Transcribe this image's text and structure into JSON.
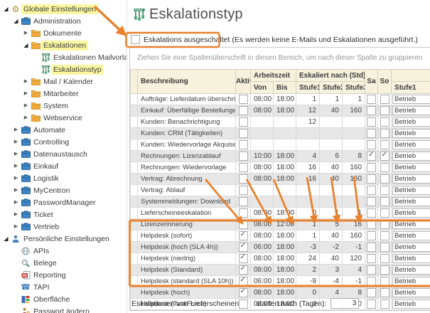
{
  "sidebar": {
    "items": [
      {
        "label": "Globale Einstellungen",
        "level": 0,
        "icon": "gear-icon",
        "expander": "expanded",
        "highlight": true
      },
      {
        "label": "Administration",
        "level": 1,
        "icon": "briefcase-icon",
        "expander": "expanded",
        "highlight": false
      },
      {
        "label": "Dokumente",
        "level": 2,
        "icon": "folder-icon",
        "expander": "collapsed",
        "highlight": false
      },
      {
        "label": "Eskalationen",
        "level": 2,
        "icon": "folder-icon",
        "expander": "expanded",
        "highlight": true
      },
      {
        "label": "Eskalationen Mailvorlage",
        "level": 3,
        "icon": "escalation-icon",
        "expander": "none",
        "highlight": false
      },
      {
        "label": "Eskalationstyp",
        "level": 3,
        "icon": "escalation-icon",
        "expander": "none",
        "highlight": true
      },
      {
        "label": "Mail / Kalender",
        "level": 2,
        "icon": "folder-icon",
        "expander": "collapsed",
        "highlight": false
      },
      {
        "label": "Mitarbeiter",
        "level": 2,
        "icon": "folder-icon",
        "expander": "collapsed",
        "highlight": false
      },
      {
        "label": "System",
        "level": 2,
        "icon": "folder-icon",
        "expander": "collapsed",
        "highlight": false
      },
      {
        "label": "Webservice",
        "level": 2,
        "icon": "folder-icon",
        "expander": "collapsed",
        "highlight": false
      },
      {
        "label": "Automate",
        "level": 1,
        "icon": "briefcase-icon",
        "expander": "collapsed",
        "highlight": false
      },
      {
        "label": "Controlling",
        "level": 1,
        "icon": "briefcase-icon",
        "expander": "collapsed",
        "highlight": false
      },
      {
        "label": "Datenaustausch",
        "level": 1,
        "icon": "briefcase-icon",
        "expander": "collapsed",
        "highlight": false
      },
      {
        "label": "Einkauf",
        "level": 1,
        "icon": "briefcase-icon",
        "expander": "collapsed",
        "highlight": false
      },
      {
        "label": "Logistik",
        "level": 1,
        "icon": "briefcase-icon",
        "expander": "collapsed",
        "highlight": false
      },
      {
        "label": "MyCentron",
        "level": 1,
        "icon": "briefcase-icon",
        "expander": "collapsed",
        "highlight": false
      },
      {
        "label": "PasswordManager",
        "level": 1,
        "icon": "briefcase-icon",
        "expander": "collapsed",
        "highlight": false
      },
      {
        "label": "Ticket",
        "level": 1,
        "icon": "briefcase-icon",
        "expander": "collapsed",
        "highlight": false
      },
      {
        "label": "Vertrieb",
        "level": 1,
        "icon": "briefcase-icon",
        "expander": "collapsed",
        "highlight": false
      },
      {
        "label": "Persönliche Einstellungen",
        "level": 0,
        "icon": "person-icon",
        "expander": "expanded",
        "highlight": false
      },
      {
        "label": "APIs",
        "level": 1,
        "icon": "globe-icon",
        "expander": "none",
        "highlight": false
      },
      {
        "label": "Belege",
        "level": 1,
        "icon": "search-icon",
        "expander": "none",
        "highlight": false
      },
      {
        "label": "Reporting",
        "level": 1,
        "icon": "report-icon",
        "expander": "none",
        "highlight": false
      },
      {
        "label": "TAPI",
        "level": 1,
        "icon": "phone-icon",
        "expander": "none",
        "highlight": false
      },
      {
        "label": "Oberfläche",
        "level": 1,
        "icon": "tiles-icon",
        "expander": "none",
        "highlight": false
      },
      {
        "label": "Passwort ändern",
        "level": 1,
        "icon": "password-icon",
        "expander": "none",
        "highlight": false
      }
    ]
  },
  "header": {
    "title": "Eskalationstyp",
    "icon": "escalation-icon"
  },
  "toggle": {
    "label": "Eskalations ausgeschaltet",
    "note": "(Es werden keine E-Mails und Eskalationen ausgeführt.)",
    "checked": false
  },
  "grid": {
    "group_hint": "Ziehen Sie eine Spaltenüberschrift in diesen Bereich, um nach dieser Spalte zu gruppieren",
    "headers": {
      "beschreibung": "Beschreibung",
      "aktiv": "Aktiv",
      "arbeitszeit": "Arbeitszeit",
      "von": "Von",
      "bis": "Bis",
      "eskaliert": "Eskaliert nach (Std)",
      "stufe1": "Stufe1",
      "stufe2": "Stufe2",
      "stufe3": "Stufe3",
      "sa": "Sa",
      "so": "So",
      "stufe1_action": "Stufe1"
    },
    "rows": [
      {
        "desc": "Aufträge: Lieferdatum überschritten",
        "aktiv": false,
        "von": "08:00",
        "bis": "18:00",
        "stufe1": "1",
        "stufe2": "1",
        "stufe3": "1",
        "sa": false,
        "so": false,
        "stufe1_action": "Betrieb"
      },
      {
        "desc": "Einkauf: Überfällige Bestellungen",
        "aktiv": false,
        "von": "08:00",
        "bis": "18:00",
        "stufe1": "12",
        "stufe2": "40",
        "stufe3": "160",
        "sa": false,
        "so": false,
        "stufe1_action": "Betrieb"
      },
      {
        "desc": "Kunden: Benachrichtigung",
        "aktiv": false,
        "von": "",
        "bis": "",
        "stufe1": "12",
        "stufe2": "",
        "stufe3": "",
        "sa": false,
        "so": false,
        "stufe1_action": "Betrieb"
      },
      {
        "desc": "Kunden: CRM (Tätigkeiten)",
        "aktiv": false,
        "von": "",
        "bis": "",
        "stufe1": "",
        "stufe2": "",
        "stufe3": "",
        "sa": false,
        "so": false,
        "stufe1_action": "Betrieb"
      },
      {
        "desc": "Kunden: Wiedervorlage Akquise",
        "aktiv": false,
        "von": "",
        "bis": "",
        "stufe1": "",
        "stufe2": "",
        "stufe3": "",
        "sa": false,
        "so": false,
        "stufe1_action": "Betrieb"
      },
      {
        "desc": "Rechnungen: Lizenzablauf",
        "aktiv": false,
        "von": "10:00",
        "bis": "18:00",
        "stufe1": "4",
        "stufe2": "6",
        "stufe3": "8",
        "sa": true,
        "so": true,
        "stufe1_action": "Betrieb"
      },
      {
        "desc": "Rechnungen: Wiedervorlage",
        "aktiv": false,
        "von": "08:00",
        "bis": "18:00",
        "stufe1": "16",
        "stufe2": "40",
        "stufe3": "160",
        "sa": false,
        "so": false,
        "stufe1_action": "Betrieb"
      },
      {
        "desc": "Vertrag: Abrechnung",
        "aktiv": false,
        "von": "08:00",
        "bis": "18:00",
        "stufe1": "16",
        "stufe2": "40",
        "stufe3": "160",
        "sa": false,
        "so": false,
        "stufe1_action": "Betrieb"
      },
      {
        "desc": "Vertrag: Ablauf",
        "aktiv": false,
        "von": "",
        "bis": "",
        "stufe1": "",
        "stufe2": "",
        "stufe3": "",
        "sa": false,
        "so": false,
        "stufe1_action": "Betrieb"
      },
      {
        "desc": "Systemmeldungen: Download",
        "aktiv": false,
        "von": "",
        "bis": "",
        "stufe1": "",
        "stufe2": "",
        "stufe3": "",
        "sa": false,
        "so": false,
        "stufe1_action": "Betrieb"
      },
      {
        "desc": "Lieferscheineeskalation",
        "aktiv": false,
        "von": "08:00",
        "bis": "18:00",
        "stufe1": "0",
        "stufe2": "1",
        "stufe3": "1",
        "sa": false,
        "so": false,
        "stufe1_action": "Betrieb"
      },
      {
        "desc": "Lizenzerinnerung",
        "aktiv": false,
        "von": "08:00",
        "bis": "12:00",
        "stufe1": "1",
        "stufe2": "5",
        "stufe3": "16",
        "sa": false,
        "so": false,
        "stufe1_action": "Betrieb"
      },
      {
        "desc": "Helpdesk (sofort)",
        "aktiv": true,
        "von": "08:00",
        "bis": "18:00",
        "stufe1": "1",
        "stufe2": "40",
        "stufe3": "160",
        "sa": false,
        "so": false,
        "stufe1_action": "Betrieb"
      },
      {
        "desc": "Helpdesk (hoch (SLA 4h))",
        "aktiv": true,
        "von": "06:00",
        "bis": "18:00",
        "stufe1": "-3",
        "stufe2": "-2",
        "stufe3": "-1",
        "sa": false,
        "so": false,
        "stufe1_action": "Betrieb"
      },
      {
        "desc": "Helpdesk (niedrig)",
        "aktiv": true,
        "von": "08:00",
        "bis": "18:00",
        "stufe1": "24",
        "stufe2": "40",
        "stufe3": "120",
        "sa": false,
        "so": false,
        "stufe1_action": "Betrieb"
      },
      {
        "desc": "Helpdesk (Standard)",
        "aktiv": true,
        "von": "08:00",
        "bis": "18:00",
        "stufe1": "2",
        "stufe2": "3",
        "stufe3": "4",
        "sa": false,
        "so": false,
        "stufe1_action": "Betrieb"
      },
      {
        "desc": "Helpdesk (standard (SLA 10h))",
        "aktiv": true,
        "von": "06:00",
        "bis": "18:00",
        "stufe1": "-9",
        "stufe2": "-4",
        "stufe3": "-1",
        "sa": false,
        "so": false,
        "stufe1_action": "Betrieb"
      },
      {
        "desc": "Helpdesk (hoch)",
        "aktiv": true,
        "von": "08:00",
        "bis": "18:00",
        "stufe1": "0",
        "stufe2": "4",
        "stufe3": "8",
        "sa": false,
        "so": false,
        "stufe1_action": "Betrieb"
      },
      {
        "desc": "Helpdesk (TaskForce)",
        "aktiv": false,
        "von": "08:00",
        "bis": "18:00",
        "stufe1": "0",
        "stufe2": "0",
        "stufe3": "0",
        "sa": false,
        "so": false,
        "stufe1_action": "Betrieb"
      }
    ]
  },
  "footer": {
    "label": "Eskalationen von Lieferscheinen",
    "label2": "starten nach (Tagen):",
    "value": "3"
  },
  "colors": {
    "annotation": "#E8822D",
    "tree_highlight": "#FBF7A0",
    "header_bg": "#F6F2DE",
    "row_alt": "#E7E7E7"
  }
}
